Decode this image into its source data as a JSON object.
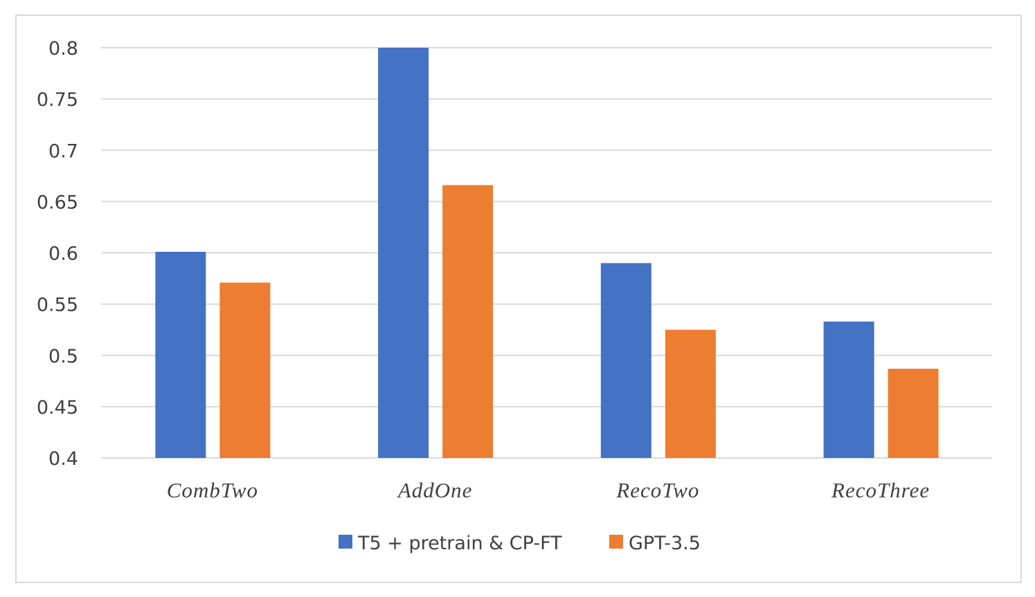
{
  "chart_data": {
    "type": "bar",
    "title": "",
    "xlabel": "",
    "ylabel": "",
    "categories": [
      "CombTwo",
      "AddOne",
      "RecoTwo",
      "RecoThree"
    ],
    "series": [
      {
        "name": "T5 + pretrain & CP-FT",
        "color": "#4472C4",
        "values": [
          0.601,
          0.8,
          0.59,
          0.533
        ]
      },
      {
        "name": "GPT-3.5",
        "color": "#ED7D31",
        "values": [
          0.571,
          0.666,
          0.525,
          0.487
        ]
      }
    ],
    "ylim": [
      0.4,
      0.8
    ],
    "yticks": [
      0.4,
      0.45,
      0.5,
      0.55,
      0.6,
      0.65,
      0.7,
      0.75,
      0.8
    ],
    "ytick_labels": [
      "0.4",
      "0.45",
      "0.5",
      "0.55",
      "0.6",
      "0.65",
      "0.7",
      "0.75",
      "0.8"
    ],
    "grid": true,
    "legend_position": "bottom-center"
  }
}
